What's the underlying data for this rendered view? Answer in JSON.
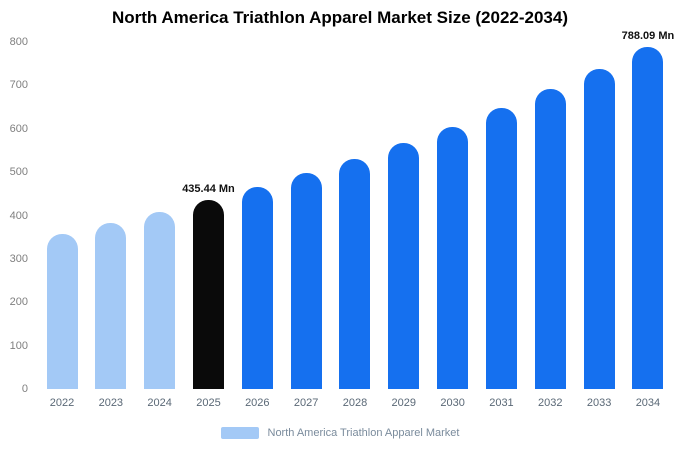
{
  "chart_data": {
    "type": "bar",
    "title": "North America Triathlon Apparel Market Size (2022-2034)",
    "categories": [
      "2022",
      "2023",
      "2024",
      "2025",
      "2026",
      "2027",
      "2028",
      "2029",
      "2030",
      "2031",
      "2032",
      "2033",
      "2034"
    ],
    "values": [
      357,
      382,
      408,
      435.44,
      465,
      497,
      531,
      567,
      605,
      647,
      691,
      738,
      788.09
    ],
    "value_unit": "Mn",
    "ylim": [
      0,
      800
    ],
    "yticks": [
      0,
      100,
      200,
      300,
      400,
      500,
      600,
      700,
      800
    ],
    "grid": false,
    "legend_position": "bottom",
    "legend_label": "North America Triathlon Apparel Market",
    "annotations": [
      {
        "category": "2025",
        "text": "435.44 Mn"
      },
      {
        "category": "2034",
        "text": "788.09 Mn"
      }
    ],
    "colors": {
      "past_bars": "#a3c9f6",
      "current_bar": "#0a0a0a",
      "future_bars": "#1570ef"
    },
    "bar_colors": [
      "#a3c9f6",
      "#a3c9f6",
      "#a3c9f6",
      "#0a0a0a",
      "#1570ef",
      "#1570ef",
      "#1570ef",
      "#1570ef",
      "#1570ef",
      "#1570ef",
      "#1570ef",
      "#1570ef",
      "#1570ef"
    ]
  }
}
